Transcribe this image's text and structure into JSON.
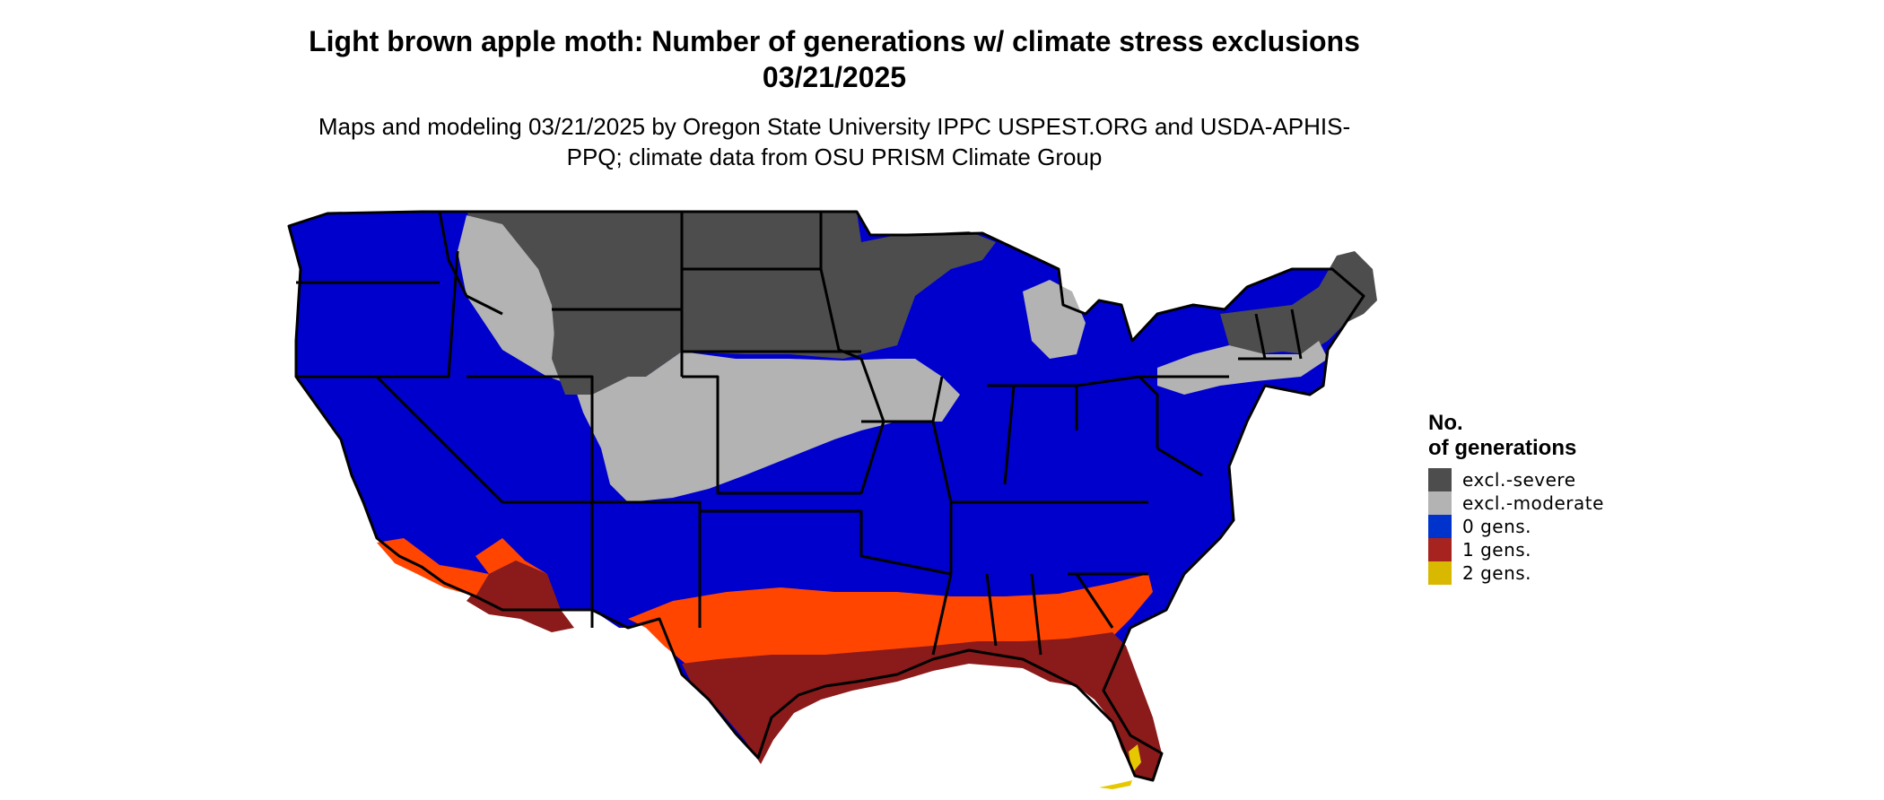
{
  "title": "Light brown apple moth: Number of generations w/ climate stress exclusions 03/21/2025",
  "subtitle": "Maps and modeling 03/21/2025 by Oregon State University IPPC USPEST.ORG and USDA-APHIS-PPQ; climate data from OSU PRISM Climate Group",
  "legend": {
    "title": "No. of generations",
    "items": [
      {
        "label": "excl.-severe",
        "color": "#4d4d4d"
      },
      {
        "label": "excl.-moderate",
        "color": "#b3b3b3"
      },
      {
        "label": "0 gens.",
        "color": "#0033cc"
      },
      {
        "label": "1 gens.",
        "color": "#a6231f"
      },
      {
        "label": "2 gens.",
        "color": "#d9b800"
      }
    ]
  },
  "map_colors": {
    "severe": "#4d4d4d",
    "moderate": "#b3b3b3",
    "zero": "#0000cc",
    "one_light": "#ff4500",
    "one_mid": "#cc3300",
    "one_dark": "#8b1a1a",
    "two": "#e6c800",
    "border": "#000000"
  }
}
